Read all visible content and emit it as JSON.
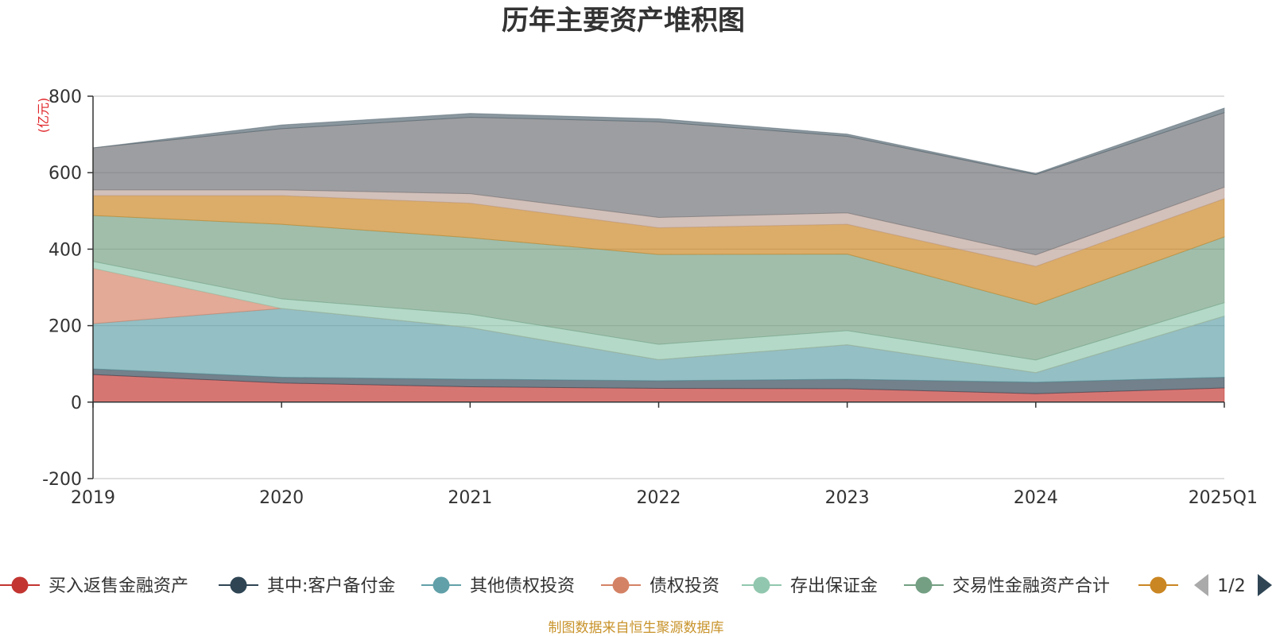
{
  "chart_data": {
    "type": "area",
    "stacked": true,
    "title": "历年主要资产堆积图",
    "ylabel": "(亿元)",
    "ylim": [
      -200,
      800
    ],
    "yticks": [
      800,
      600,
      400,
      200,
      0,
      -200
    ],
    "grid": true,
    "categories": [
      "2019",
      "2020",
      "2021",
      "2022",
      "2023",
      "2024",
      "2025Q1"
    ],
    "series": [
      {
        "name": "买入返售金融资产",
        "color": "#c23531",
        "values": [
          72,
          50,
          40,
          36,
          35,
          22,
          37
        ]
      },
      {
        "name": "其中:客户备付金",
        "color": "#2f4554",
        "values": [
          15,
          15,
          20,
          20,
          25,
          30,
          28
        ]
      },
      {
        "name": "其他债权投资",
        "color": "#61a0a8",
        "values": [
          118,
          180,
          135,
          55,
          90,
          25,
          160
        ]
      },
      {
        "name": "债权投资",
        "color": "#d48265",
        "values": [
          145,
          0,
          0,
          0,
          0,
          0,
          0
        ]
      },
      {
        "name": "存出保证金",
        "color": "#91c7ae",
        "values": [
          18,
          25,
          35,
          40,
          37,
          33,
          35
        ]
      },
      {
        "name": "交易性金融资产合计",
        "color": "#749f83",
        "values": [
          120,
          195,
          200,
          235,
          200,
          145,
          172
        ]
      },
      {
        "name": "",
        "color": "#ca8622",
        "values": [
          52,
          75,
          90,
          70,
          78,
          100,
          100
        ]
      },
      {
        "name": "",
        "color": "#bda29a",
        "values": [
          15,
          15,
          25,
          27,
          30,
          30,
          30
        ]
      },
      {
        "name": "",
        "color": "#6e7074",
        "values": [
          110,
          160,
          200,
          250,
          200,
          210,
          195
        ]
      },
      {
        "name": "",
        "color": "#546570",
        "values": [
          0,
          10,
          10,
          8,
          6,
          3,
          12
        ]
      }
    ],
    "legend": {
      "position": "bottom",
      "page": "1/2"
    }
  },
  "source": "制图数据来自恒生聚源数据库"
}
